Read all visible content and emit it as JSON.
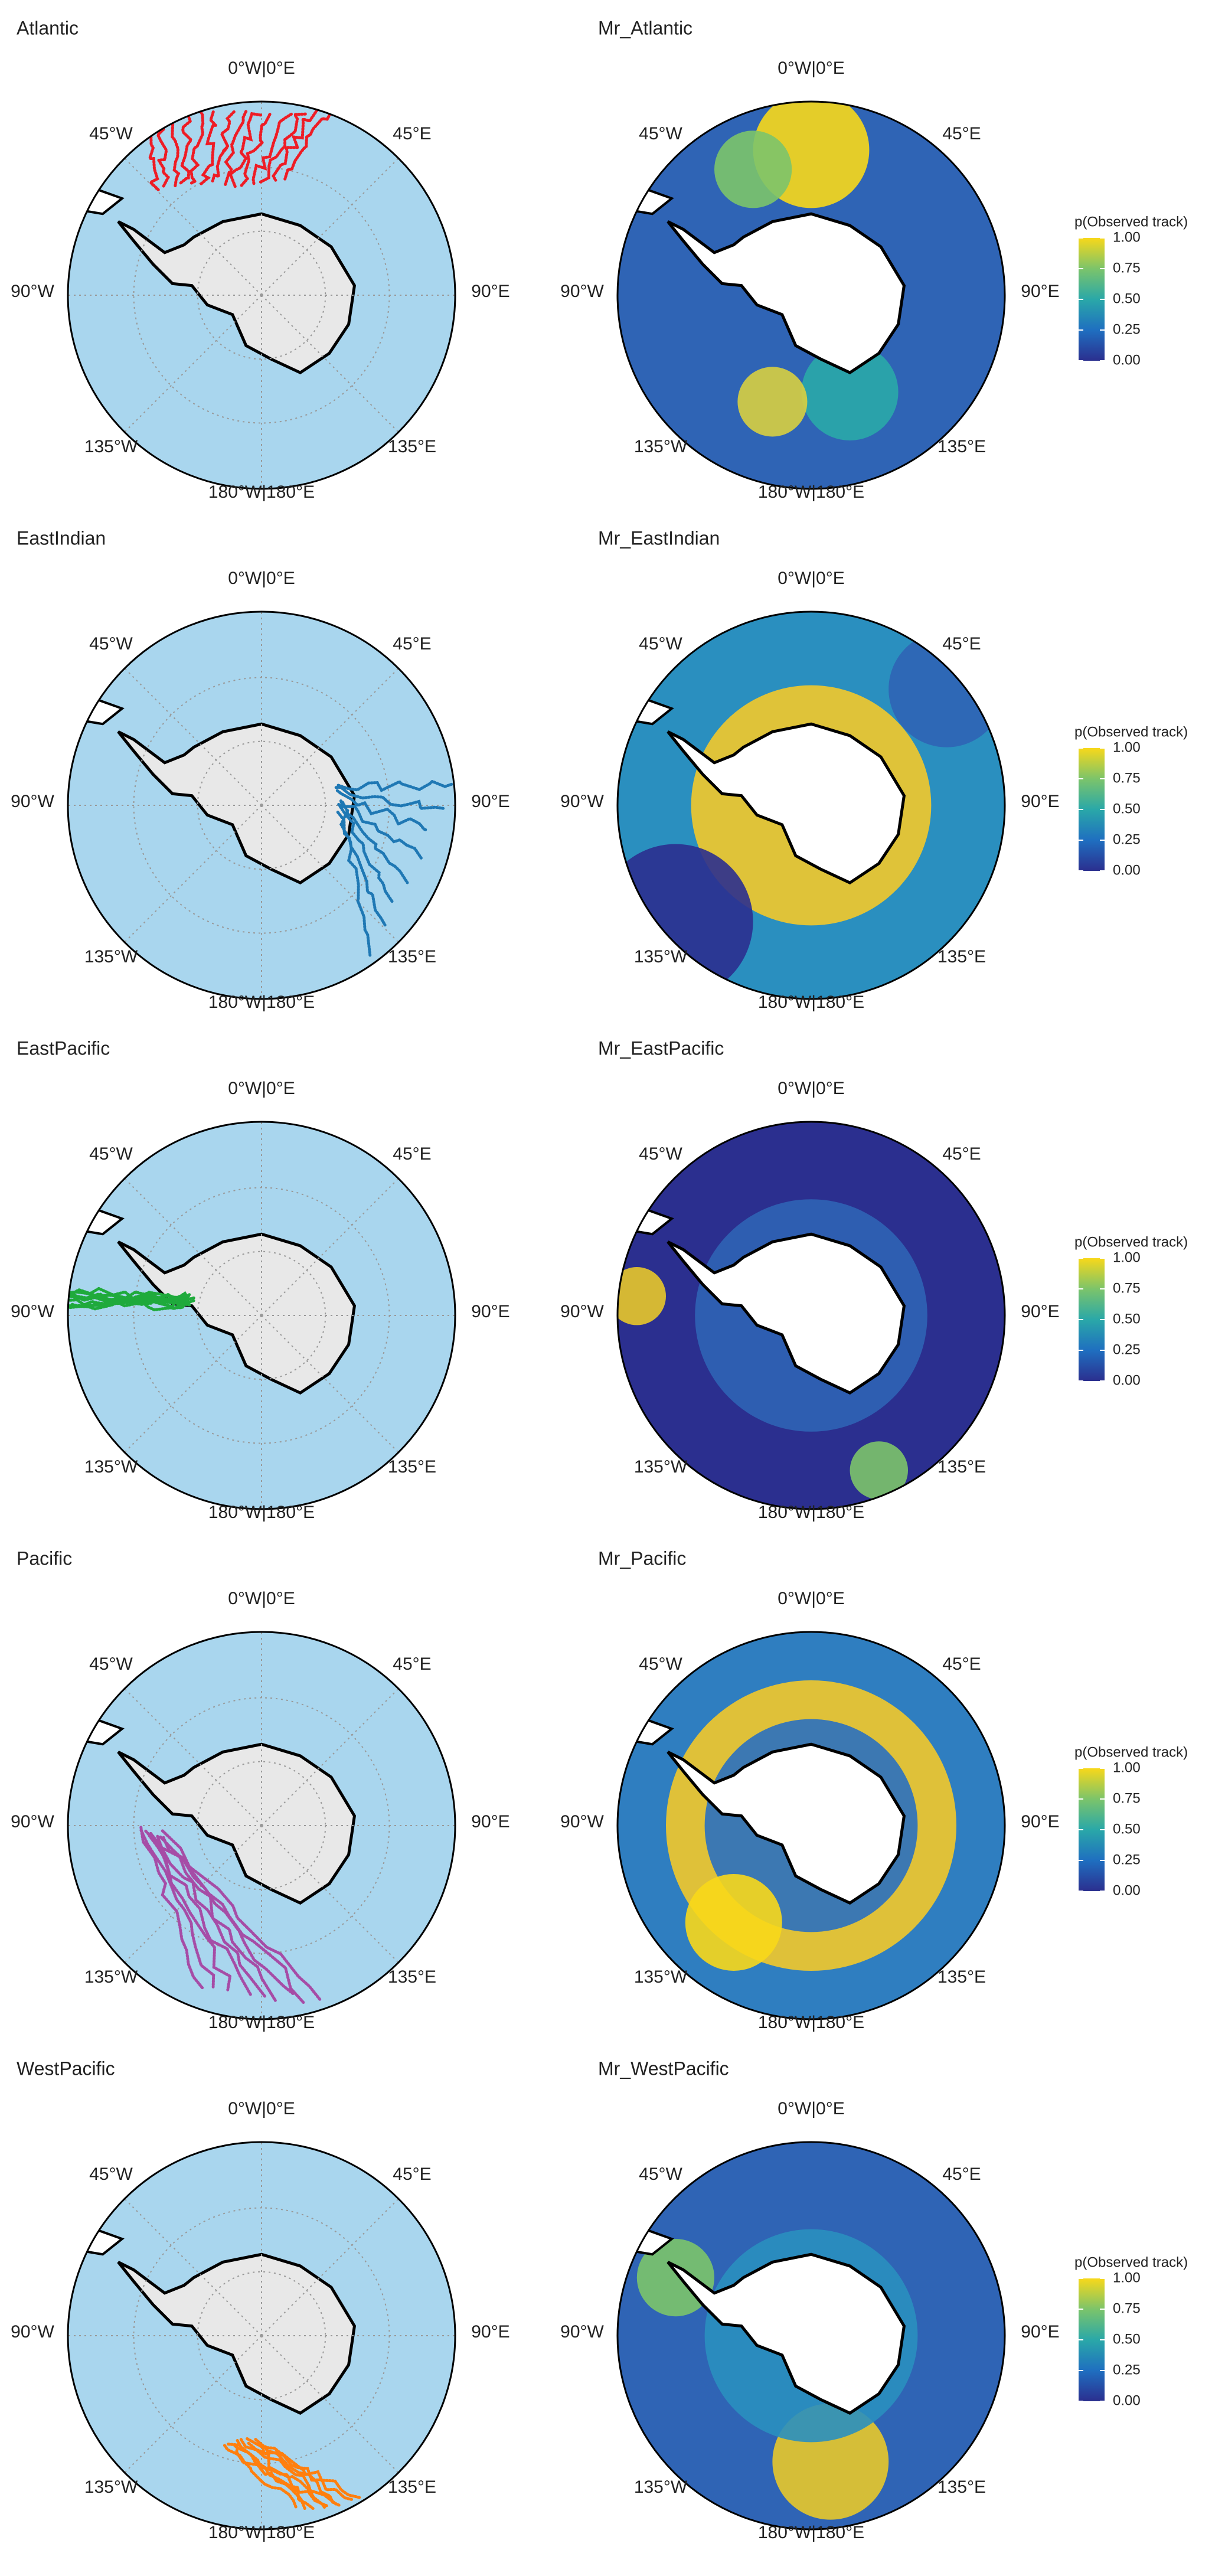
{
  "panels": [
    {
      "title": "Atlantic",
      "track_color": "#ee1c25"
    },
    {
      "title": "EastIndian",
      "track_color": "#1f78b4"
    },
    {
      "title": "EastPacific",
      "track_color": "#1faa3c"
    },
    {
      "title": "Pacific",
      "track_color": "#a64ca6"
    },
    {
      "title": "WestPacific",
      "track_color": "#ff7f0e"
    }
  ],
  "probability_panels": [
    {
      "title": "Mr_Atlantic"
    },
    {
      "title": "Mr_EastIndian"
    },
    {
      "title": "Mr_EastPacific"
    },
    {
      "title": "Mr_Pacific"
    },
    {
      "title": "Mr_WestPacific"
    }
  ],
  "graticule_labels": {
    "north": "0°W|0°E",
    "northwest": "45°W",
    "northeast": "45°E",
    "west": "90°W",
    "east": "90°E",
    "southwest": "135°W",
    "southeast": "135°E",
    "south": "180°W|180°E"
  },
  "colorbar": {
    "title": "p(Observed track)",
    "lim": [
      0,
      1
    ],
    "ticks": [
      {
        "value": 0,
        "label": "0.00"
      },
      {
        "value": 0.25,
        "label": "0.25"
      },
      {
        "value": 0.5,
        "label": "0.50"
      },
      {
        "value": 0.75,
        "label": "0.75"
      },
      {
        "value": 1,
        "label": "1.00"
      }
    ],
    "colors": [
      "#2b2f8f",
      "#1f6fc0",
      "#2aa8a8",
      "#7cc46a",
      "#f8d81a"
    ]
  }
}
